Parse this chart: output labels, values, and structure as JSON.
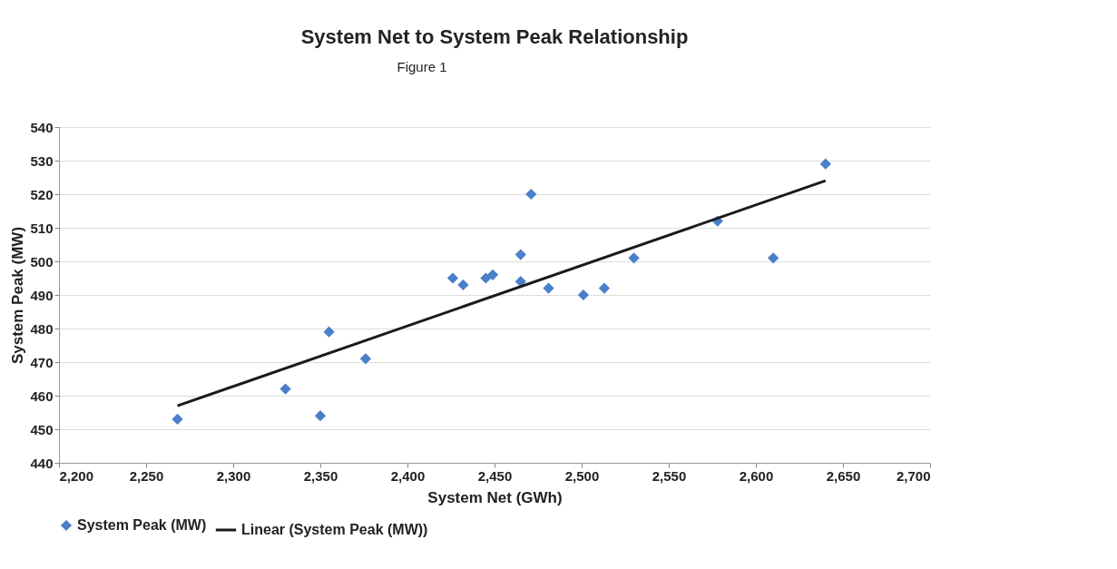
{
  "chart_data": {
    "type": "scatter",
    "title": "System Net to System Peak Relationship",
    "xlabel": "System Net (GWh)",
    "ylabel": "System Peak (MW)",
    "annotations": [
      "Figure 1"
    ],
    "xlim": [
      2200,
      2700
    ],
    "xticks": [
      {
        "value": 2200,
        "label": "2,200"
      },
      {
        "value": 2250,
        "label": "2,250"
      },
      {
        "value": 2300,
        "label": "2,300"
      },
      {
        "value": 2350,
        "label": "2,350"
      },
      {
        "value": 2400,
        "label": "2,400"
      },
      {
        "value": 2450,
        "label": "2,450"
      },
      {
        "value": 2500,
        "label": "2,500"
      },
      {
        "value": 2550,
        "label": "2,550"
      },
      {
        "value": 2600,
        "label": "2,600"
      },
      {
        "value": 2650,
        "label": "2,650"
      },
      {
        "value": 2700,
        "label": "2,700"
      }
    ],
    "ylim": [
      440,
      540
    ],
    "yticks": [
      440,
      450,
      460,
      470,
      480,
      490,
      500,
      510,
      520,
      530,
      540
    ],
    "grid": "y",
    "legend": "bottom",
    "series": [
      {
        "name": "System Peak (MW)",
        "type": "scatter",
        "marker": "diamond",
        "color": "#4a7fc9",
        "x": [
          2268,
          2330,
          2350,
          2355,
          2376,
          2426,
          2432,
          2445,
          2449,
          2465,
          2465,
          2471,
          2481,
          2501,
          2513,
          2530,
          2578,
          2610,
          2640
        ],
        "values": [
          453,
          462,
          454,
          479,
          471,
          495,
          493,
          495,
          496,
          502,
          494,
          520,
          492,
          490,
          492,
          501,
          512,
          501,
          529
        ]
      },
      {
        "name": "Linear (System Peak (MW))",
        "type": "line",
        "color": "#1a1a1a",
        "line_style": "solid",
        "x": [
          2268,
          2640
        ],
        "values": [
          457,
          524
        ]
      }
    ]
  }
}
